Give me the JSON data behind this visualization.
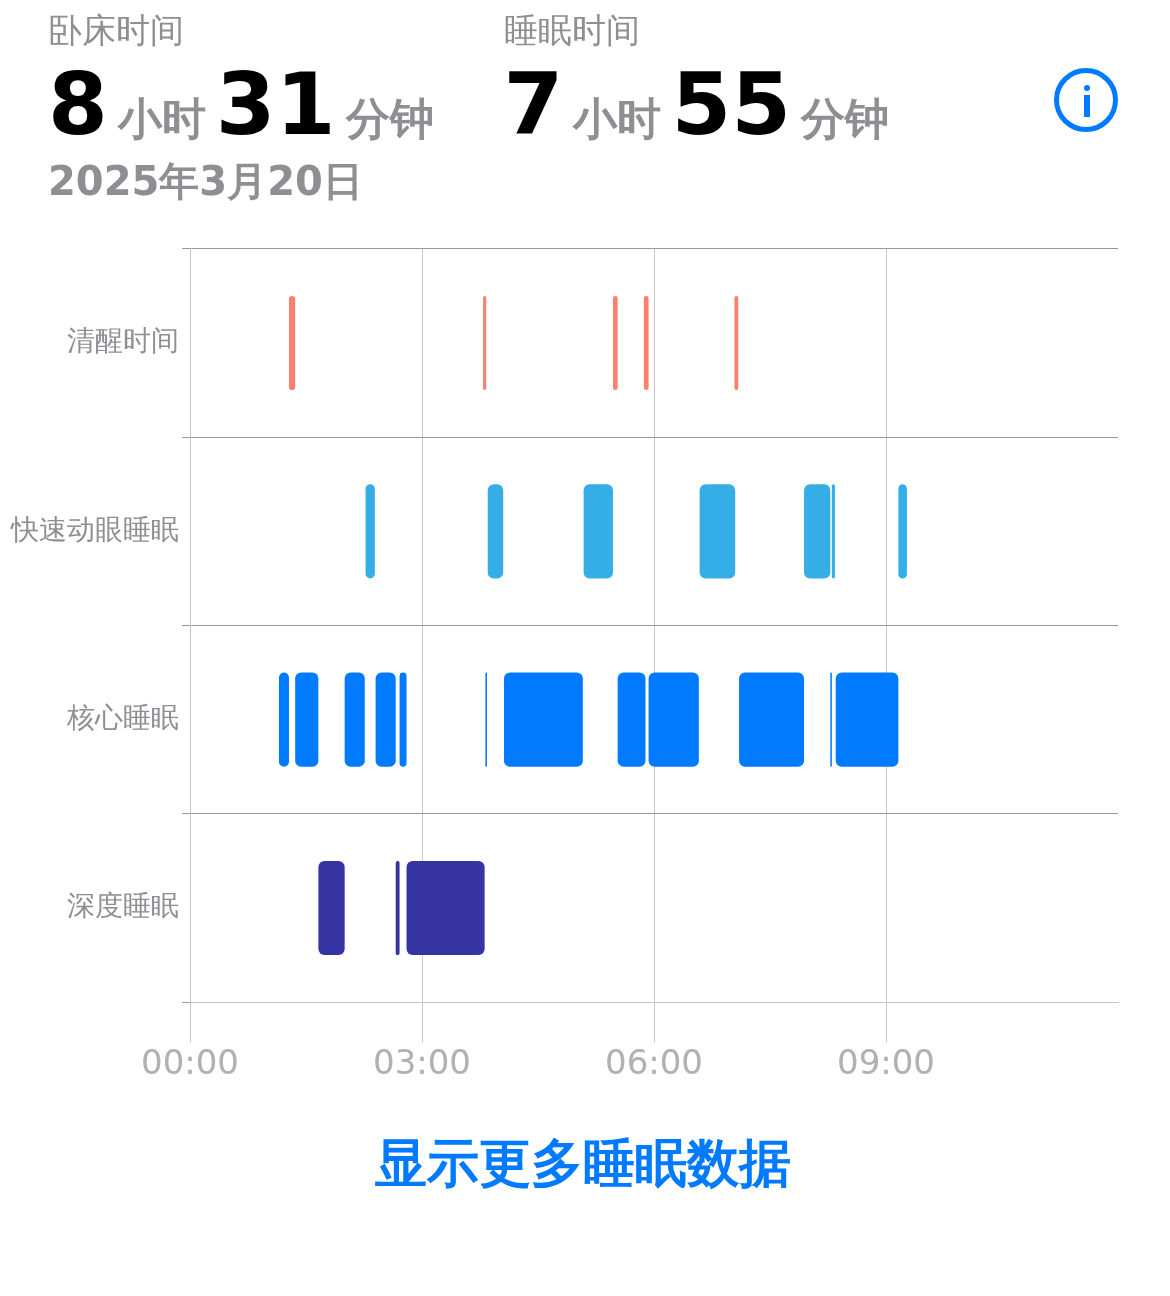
{
  "chart_data": {
    "type": "bar",
    "orientation": "horizontal",
    "title": "2025年3月20日",
    "annotations": [
      "卧床时间",
      "8小时31分钟",
      "睡眠时间",
      "7小时55分钟",
      "显示更多睡眠数据"
    ],
    "categories": [
      "清醒时间",
      "快速动眼睡眠",
      "核心睡眠",
      "深度睡眠"
    ],
    "series": [
      {
        "colors": [
          "#ff7f6e",
          "#35aee8",
          "#007aff",
          "#3634a3"
        ],
        "values": [
          0.08,
          0.12,
          0.13,
          0.34
        ],
        "base": [
          1.28,
          2.27,
          1.15,
          1.66
        ]
      },
      {
        "colors": [
          "#ff7f6e",
          "#35aee8",
          "#007aff",
          "#3634a3"
        ],
        "values": [
          0.04,
          0.2,
          0.3,
          0.05
        ],
        "base": [
          3.79,
          3.85,
          1.36,
          2.66
        ]
      },
      {
        "colors": [
          "#ff7f6e",
          "#35aee8",
          "#007aff",
          "#3634a3"
        ],
        "values": [
          0.06,
          0.38,
          0.26,
          1.01
        ],
        "base": [
          5.47,
          5.09,
          2.0,
          2.8
        ]
      },
      {
        "colors": [
          "#ff7f6e",
          "#35aee8",
          "#007aff",
          "#3634a3"
        ],
        "values": [
          0.06,
          0.46,
          0.26,
          null
        ],
        "base": [
          5.87,
          6.59,
          2.4,
          null
        ]
      },
      {
        "colors": [
          "#ff7f6e",
          "#35aee8",
          "#007aff",
          "#3634a3"
        ],
        "values": [
          0.05,
          0.34,
          0.09,
          null
        ],
        "base": [
          7.04,
          7.94,
          2.71,
          null
        ]
      },
      {
        "colors": [
          "#ff7f6e",
          "#35aee8",
          "#007aff",
          "#3634a3"
        ],
        "values": [
          null,
          0.04,
          0.02,
          null
        ],
        "base": [
          null,
          8.3,
          3.82,
          null
        ]
      },
      {
        "colors": [
          "#ff7f6e",
          "#35aee8",
          "#007aff",
          "#3634a3"
        ],
        "values": [
          null,
          0.11,
          1.02,
          null
        ],
        "base": [
          null,
          9.16,
          4.06,
          null
        ]
      },
      {
        "color": "#007aff",
        "values": [
          null,
          null,
          0.36,
          null
        ],
        "base": [
          null,
          null,
          5.53,
          null
        ]
      },
      {
        "color": "#007aff",
        "values": [
          null,
          null,
          0.65,
          null
        ],
        "base": [
          null,
          null,
          5.93,
          null
        ]
      },
      {
        "color": "#007aff",
        "values": [
          null,
          null,
          0.84,
          null
        ],
        "base": [
          null,
          null,
          7.1,
          null
        ]
      },
      {
        "color": "#007aff",
        "values": [
          null,
          null,
          0.02,
          null
        ],
        "base": [
          null,
          null,
          8.28,
          null
        ]
      },
      {
        "color": "#007aff",
        "values": [
          null,
          null,
          0.81,
          null
        ],
        "base": [
          null,
          null,
          8.35,
          null
        ]
      }
    ],
    "xlim": [
      0,
      12
    ],
    "xticks": [
      {
        "value": 0,
        "label": "00:00"
      },
      {
        "value": 3,
        "label": "03:00"
      },
      {
        "value": 6,
        "label": "06:00"
      },
      {
        "value": 9,
        "label": "09:00"
      }
    ],
    "grid": true,
    "legend": false
  }
}
